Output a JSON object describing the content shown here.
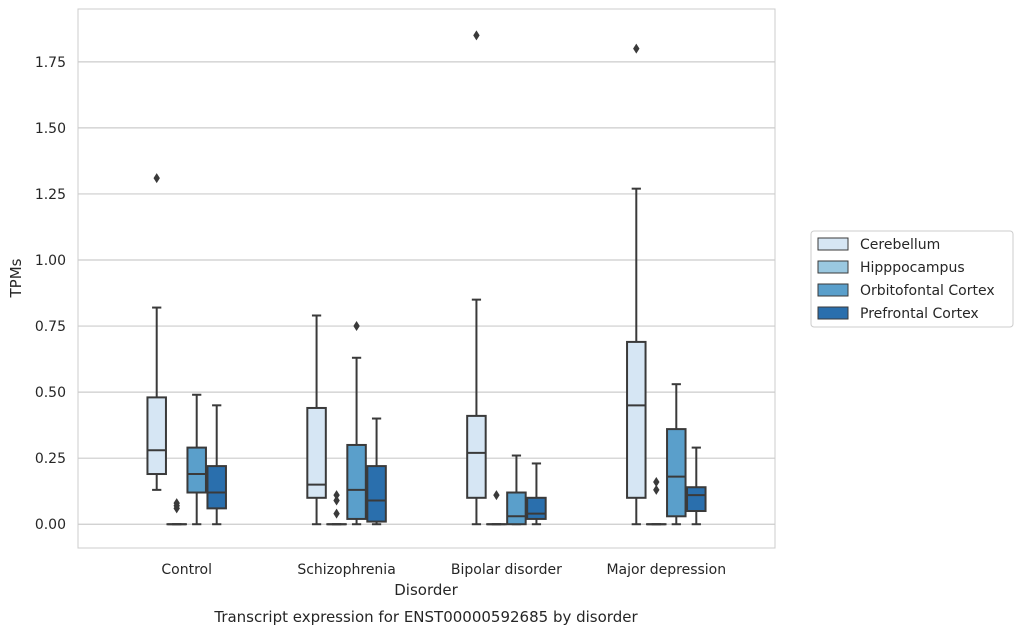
{
  "chart_data": {
    "type": "boxplot",
    "title": "",
    "caption": "Transcript expression for ENST00000592685 by disorder",
    "xlabel": "Disorder",
    "ylabel": "TPMs",
    "ylim": [
      -0.09,
      1.95
    ],
    "yticks": [
      "0.00",
      "0.25",
      "0.50",
      "0.75",
      "1.00",
      "1.25",
      "1.50",
      "1.75"
    ],
    "ytick_values": [
      0,
      0.25,
      0.5,
      0.75,
      1.0,
      1.25,
      1.5,
      1.75
    ],
    "grid": "horizontal",
    "legend_position": "right",
    "categories": [
      "Control",
      "Schizophrenia",
      "Bipolar disorder",
      "Major depression"
    ],
    "series": [
      {
        "name": "Cerebellum",
        "color": "#d6e6f4",
        "boxes": [
          {
            "whislo": 0.13,
            "q1": 0.19,
            "med": 0.28,
            "q3": 0.48,
            "whishi": 0.82,
            "fliers": [
              1.31
            ]
          },
          {
            "whislo": 0.0,
            "q1": 0.1,
            "med": 0.15,
            "q3": 0.44,
            "whishi": 0.79,
            "fliers": []
          },
          {
            "whislo": 0.0,
            "q1": 0.1,
            "med": 0.27,
            "q3": 0.41,
            "whishi": 0.85,
            "fliers": [
              1.85
            ]
          },
          {
            "whislo": 0.0,
            "q1": 0.1,
            "med": 0.45,
            "q3": 0.69,
            "whishi": 1.27,
            "fliers": [
              1.8
            ]
          }
        ]
      },
      {
        "name": "Hipppocampus",
        "color": "#9ac8e0",
        "boxes": [
          {
            "whislo": 0.0,
            "q1": 0.0,
            "med": 0.0,
            "q3": 0.0,
            "whishi": 0.0,
            "fliers": [
              0.06,
              0.07,
              0.08
            ]
          },
          {
            "whislo": 0.0,
            "q1": 0.0,
            "med": 0.0,
            "q3": 0.0,
            "whishi": 0.0,
            "fliers": [
              0.04,
              0.09,
              0.11
            ]
          },
          {
            "whislo": 0.0,
            "q1": 0.0,
            "med": 0.0,
            "q3": 0.0,
            "whishi": 0.0,
            "fliers": [
              0.11
            ]
          },
          {
            "whislo": 0.0,
            "q1": 0.0,
            "med": 0.0,
            "q3": 0.0,
            "whishi": 0.0,
            "fliers": [
              0.13,
              0.16
            ]
          }
        ]
      },
      {
        "name": "Orbitofontal Cortex",
        "color": "#5a9fcb",
        "boxes": [
          {
            "whislo": 0.0,
            "q1": 0.12,
            "med": 0.19,
            "q3": 0.29,
            "whishi": 0.49,
            "fliers": []
          },
          {
            "whislo": 0.0,
            "q1": 0.02,
            "med": 0.13,
            "q3": 0.3,
            "whishi": 0.63,
            "fliers": [
              0.75
            ]
          },
          {
            "whislo": 0.0,
            "q1": 0.0,
            "med": 0.03,
            "q3": 0.12,
            "whishi": 0.26,
            "fliers": []
          },
          {
            "whislo": 0.0,
            "q1": 0.03,
            "med": 0.18,
            "q3": 0.36,
            "whishi": 0.53,
            "fliers": []
          }
        ]
      },
      {
        "name": "Prefrontal Cortex",
        "color": "#2a6fad",
        "boxes": [
          {
            "whislo": 0.0,
            "q1": 0.06,
            "med": 0.12,
            "q3": 0.22,
            "whishi": 0.45,
            "fliers": []
          },
          {
            "whislo": 0.0,
            "q1": 0.01,
            "med": 0.09,
            "q3": 0.22,
            "whishi": 0.4,
            "fliers": []
          },
          {
            "whislo": 0.0,
            "q1": 0.02,
            "med": 0.04,
            "q3": 0.1,
            "whishi": 0.23,
            "fliers": []
          },
          {
            "whislo": 0.0,
            "q1": 0.05,
            "med": 0.11,
            "q3": 0.14,
            "whishi": 0.29,
            "fliers": []
          }
        ]
      }
    ],
    "colors": {
      "grid": "#cccccc",
      "frame": "#cccccc",
      "box_edge": "#3a3a3a",
      "text": "#262626"
    }
  }
}
